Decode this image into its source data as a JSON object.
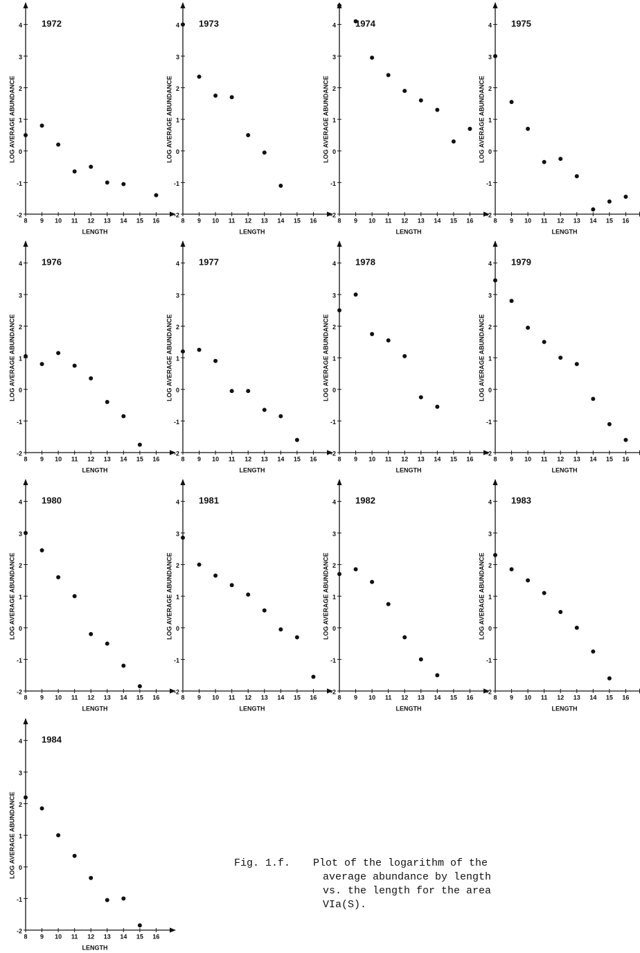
{
  "chart_data": [
    {
      "type": "scatter",
      "title": "1972",
      "xlabel": "LENGTH",
      "ylabel": "LOG AVERAGE ABUNDANCE",
      "x": [
        8,
        9,
        10,
        11,
        12,
        13,
        14,
        16
      ],
      "values": [
        0.5,
        0.8,
        0.2,
        -0.65,
        -0.5,
        -1.0,
        -1.05,
        -1.4
      ],
      "xlim": [
        8,
        17
      ],
      "ylim": [
        -2,
        4.6
      ],
      "xticks": [
        8,
        9,
        10,
        11,
        12,
        13,
        14,
        15,
        16
      ],
      "yticks": [
        -2,
        -1,
        0,
        1,
        2,
        3,
        4
      ],
      "color": "#111111"
    },
    {
      "type": "scatter",
      "title": "1973",
      "xlabel": "LENGTH",
      "ylabel": "LOG AVERAGE ABUNDANCE",
      "x": [
        8,
        9,
        10,
        11,
        12,
        13,
        14
      ],
      "values": [
        4.0,
        2.35,
        1.75,
        1.7,
        0.5,
        -0.05,
        -1.1
      ],
      "xlim": [
        8,
        17
      ],
      "ylim": [
        -2,
        4.6
      ],
      "xticks": [
        8,
        9,
        10,
        11,
        12,
        13,
        14,
        15,
        16
      ],
      "yticks": [
        -2,
        -1,
        0,
        1,
        2,
        3,
        4
      ],
      "color": "#111111"
    },
    {
      "type": "scatter",
      "title": "1974",
      "xlabel": "LENGTH",
      "ylabel": "LOG AVERAGE ABUNDANCE",
      "x": [
        8,
        9,
        10,
        11,
        12,
        13,
        14,
        15,
        16
      ],
      "values": [
        4.6,
        4.1,
        2.95,
        2.4,
        1.9,
        1.6,
        1.3,
        0.3,
        0.7
      ],
      "xlim": [
        8,
        17
      ],
      "ylim": [
        -2,
        4.6
      ],
      "xticks": [
        8,
        9,
        10,
        11,
        12,
        13,
        14,
        15,
        16
      ],
      "yticks": [
        -2,
        -1,
        0,
        1,
        2,
        3,
        4
      ],
      "color": "#111111"
    },
    {
      "type": "scatter",
      "title": "1975",
      "xlabel": "LENGTH",
      "ylabel": "LOG AVERAGE ABUNDANCE",
      "x": [
        8,
        9,
        10,
        11,
        12,
        13,
        14,
        15,
        16
      ],
      "values": [
        3.0,
        1.55,
        0.7,
        -0.35,
        -0.25,
        -0.8,
        -1.85,
        -1.6,
        -1.45
      ],
      "xlim": [
        8,
        17
      ],
      "ylim": [
        -2,
        4.6
      ],
      "xticks": [
        8,
        9,
        10,
        11,
        12,
        13,
        14,
        15,
        16
      ],
      "yticks": [
        -2,
        -1,
        0,
        1,
        2,
        3,
        4
      ],
      "color": "#111111"
    },
    {
      "type": "scatter",
      "title": "1976",
      "xlabel": "LENGTH",
      "ylabel": "LOG AVERAGE ABUNDANCE",
      "x": [
        8,
        9,
        10,
        11,
        12,
        13,
        14,
        15
      ],
      "values": [
        1.05,
        0.8,
        1.15,
        0.75,
        0.35,
        -0.4,
        -0.85,
        -1.75
      ],
      "xlim": [
        8,
        17
      ],
      "ylim": [
        -2,
        4.6
      ],
      "xticks": [
        8,
        9,
        10,
        11,
        12,
        13,
        14,
        15,
        16
      ],
      "yticks": [
        -2,
        -1,
        0,
        1,
        2,
        3,
        4
      ],
      "color": "#111111"
    },
    {
      "type": "scatter",
      "title": "1977",
      "xlabel": "LENGTH",
      "ylabel": "LOG AVERAGE ABUNDANCE",
      "x": [
        8,
        9,
        10,
        11,
        12,
        13,
        14,
        15
      ],
      "values": [
        1.2,
        1.25,
        0.9,
        -0.05,
        -0.05,
        -0.65,
        -0.85,
        -1.6
      ],
      "xlim": [
        8,
        17
      ],
      "ylim": [
        -2,
        4.6
      ],
      "xticks": [
        8,
        9,
        10,
        11,
        12,
        13,
        14,
        15,
        16
      ],
      "yticks": [
        -2,
        -1,
        0,
        1,
        2,
        3,
        4
      ],
      "color": "#111111"
    },
    {
      "type": "scatter",
      "title": "1978",
      "xlabel": "LENGTH",
      "ylabel": "LOG AVERAGE ABUNDANCE",
      "x": [
        8,
        9,
        10,
        11,
        12,
        13,
        14
      ],
      "values": [
        2.5,
        3.0,
        1.75,
        1.55,
        1.05,
        -0.25,
        -0.55
      ],
      "xlim": [
        8,
        17
      ],
      "ylim": [
        -2,
        4.6
      ],
      "xticks": [
        8,
        9,
        10,
        11,
        12,
        13,
        14,
        15,
        16
      ],
      "yticks": [
        -2,
        -1,
        0,
        1,
        2,
        3,
        4
      ],
      "color": "#111111"
    },
    {
      "type": "scatter",
      "title": "1979",
      "xlabel": "LENGTH",
      "ylabel": "LOG AVERAGE ABUNDANCE",
      "x": [
        8,
        9,
        10,
        11,
        12,
        13,
        14,
        15,
        16
      ],
      "values": [
        3.45,
        2.8,
        1.95,
        1.5,
        1.0,
        0.8,
        -0.3,
        -1.1,
        -1.6
      ],
      "xlim": [
        8,
        17
      ],
      "ylim": [
        -2,
        4.6
      ],
      "xticks": [
        8,
        9,
        10,
        11,
        12,
        13,
        14,
        15,
        16
      ],
      "yticks": [
        -2,
        -1,
        0,
        1,
        2,
        3,
        4
      ],
      "color": "#111111"
    },
    {
      "type": "scatter",
      "title": "1980",
      "xlabel": "LENGTH",
      "ylabel": "LOG AVERAGE ABUNDANCE",
      "x": [
        8,
        9,
        10,
        11,
        12,
        13,
        14,
        15
      ],
      "values": [
        3.0,
        2.45,
        1.6,
        1.0,
        -0.2,
        -0.5,
        -1.2,
        -1.85
      ],
      "xlim": [
        8,
        17
      ],
      "ylim": [
        -2,
        4.6
      ],
      "xticks": [
        8,
        9,
        10,
        11,
        12,
        13,
        14,
        15,
        16
      ],
      "yticks": [
        -2,
        -1,
        0,
        1,
        2,
        3,
        4
      ],
      "color": "#111111"
    },
    {
      "type": "scatter",
      "title": "1981",
      "xlabel": "LENGTH",
      "ylabel": "LOG AVERAGE ABUNDANCE",
      "x": [
        8,
        9,
        10,
        11,
        12,
        13,
        14,
        15,
        16
      ],
      "values": [
        2.85,
        2.0,
        1.65,
        1.35,
        1.05,
        0.55,
        -0.05,
        -0.3,
        -1.55
      ],
      "xlim": [
        8,
        17
      ],
      "ylim": [
        -2,
        4.6
      ],
      "xticks": [
        8,
        9,
        10,
        11,
        12,
        13,
        14,
        15,
        16
      ],
      "yticks": [
        -2,
        -1,
        0,
        1,
        2,
        3,
        4
      ],
      "color": "#111111"
    },
    {
      "type": "scatter",
      "title": "1982",
      "xlabel": "LENGTH",
      "ylabel": "LOG AVERAGE ABUNDANCE",
      "x": [
        8,
        9,
        10,
        11,
        12,
        13,
        14
      ],
      "values": [
        1.7,
        1.85,
        1.45,
        0.75,
        -0.3,
        -1.0,
        -1.5
      ],
      "xlim": [
        8,
        17
      ],
      "ylim": [
        -2,
        4.6
      ],
      "xticks": [
        8,
        9,
        10,
        11,
        12,
        13,
        14,
        15,
        16
      ],
      "yticks": [
        -2,
        -1,
        0,
        1,
        2,
        3,
        4
      ],
      "color": "#111111"
    },
    {
      "type": "scatter",
      "title": "1983",
      "xlabel": "LENGTH",
      "ylabel": "LOG AVERAGE ABUNDANCE",
      "x": [
        8,
        9,
        10,
        11,
        12,
        13,
        14,
        15
      ],
      "values": [
        2.3,
        1.85,
        1.5,
        1.1,
        0.5,
        0.0,
        -0.75,
        -1.6
      ],
      "xlim": [
        8,
        17
      ],
      "ylim": [
        -2,
        4.6
      ],
      "xticks": [
        8,
        9,
        10,
        11,
        12,
        13,
        14,
        15,
        16
      ],
      "yticks": [
        -2,
        -1,
        0,
        1,
        2,
        3,
        4
      ],
      "color": "#111111"
    },
    {
      "type": "scatter",
      "title": "1984",
      "xlabel": "LENGTH",
      "ylabel": "LOG AVERAGE ABUNDANCE",
      "x": [
        8,
        9,
        10,
        11,
        12,
        13,
        14,
        15
      ],
      "values": [
        2.2,
        1.85,
        1.0,
        0.35,
        -0.35,
        -1.05,
        -1.0,
        -1.85
      ],
      "xlim": [
        8,
        17
      ],
      "ylim": [
        -2,
        4.6
      ],
      "xticks": [
        8,
        9,
        10,
        11,
        12,
        13,
        14,
        15,
        16
      ],
      "yticks": [
        -2,
        -1,
        0,
        1,
        2,
        3,
        4
      ],
      "color": "#111111"
    }
  ],
  "caption": {
    "label": "Fig. 1.f.",
    "lines": [
      "Plot of the logarithm of the",
      "average abundance by length",
      "vs. the length for the area",
      "VIa(S)."
    ]
  }
}
